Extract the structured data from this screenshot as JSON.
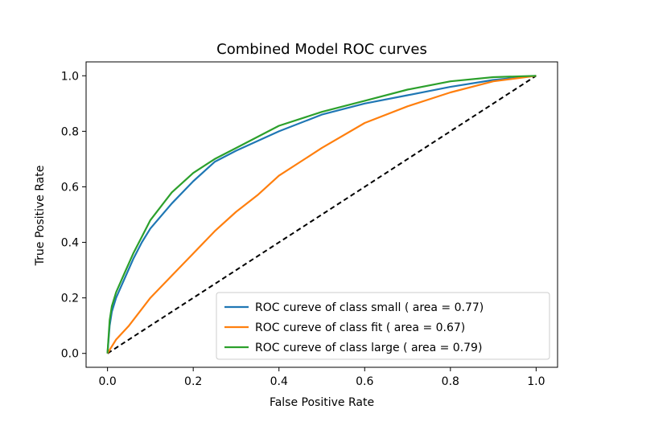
{
  "chart_data": {
    "type": "line",
    "title": "Combined Model ROC curves",
    "xlabel": "False Positive Rate",
    "ylabel": "True Positive Rate",
    "xlim": [
      -0.05,
      1.05
    ],
    "ylim": [
      -0.05,
      1.05
    ],
    "xticks": [
      0.0,
      0.2,
      0.4,
      0.6,
      0.8,
      1.0
    ],
    "yticks": [
      0.0,
      0.2,
      0.4,
      0.6,
      0.8,
      1.0
    ],
    "xtick_labels": [
      "0.0",
      "0.2",
      "0.4",
      "0.6",
      "0.8",
      "1.0"
    ],
    "ytick_labels": [
      "0.0",
      "0.2",
      "0.4",
      "0.6",
      "0.8",
      "1.0"
    ],
    "grid": false,
    "legend_position": "lower-right",
    "series": [
      {
        "name": "ROC cureve of class small ( area = 0.77)",
        "color": "#1f77b4",
        "x": [
          0.0,
          0.005,
          0.01,
          0.02,
          0.04,
          0.06,
          0.08,
          0.1,
          0.15,
          0.2,
          0.25,
          0.3,
          0.4,
          0.5,
          0.6,
          0.7,
          0.8,
          0.9,
          1.0
        ],
        "y": [
          0.0,
          0.1,
          0.15,
          0.2,
          0.27,
          0.34,
          0.4,
          0.45,
          0.54,
          0.62,
          0.69,
          0.73,
          0.8,
          0.86,
          0.9,
          0.93,
          0.96,
          0.985,
          1.0
        ]
      },
      {
        "name": "ROC cureve of class fit ( area = 0.67)",
        "color": "#ff7f0e",
        "x": [
          0.0,
          0.02,
          0.05,
          0.1,
          0.15,
          0.2,
          0.25,
          0.3,
          0.35,
          0.4,
          0.5,
          0.6,
          0.7,
          0.8,
          0.9,
          1.0
        ],
        "y": [
          0.0,
          0.05,
          0.1,
          0.2,
          0.28,
          0.36,
          0.44,
          0.51,
          0.57,
          0.64,
          0.74,
          0.83,
          0.89,
          0.94,
          0.98,
          1.0
        ]
      },
      {
        "name": "ROC cureve of class large ( area = 0.79)",
        "color": "#2ca02c",
        "x": [
          0.0,
          0.005,
          0.01,
          0.02,
          0.04,
          0.06,
          0.08,
          0.1,
          0.15,
          0.2,
          0.25,
          0.3,
          0.4,
          0.5,
          0.6,
          0.7,
          0.8,
          0.9,
          1.0
        ],
        "y": [
          0.0,
          0.12,
          0.17,
          0.22,
          0.29,
          0.36,
          0.42,
          0.48,
          0.58,
          0.65,
          0.7,
          0.74,
          0.82,
          0.87,
          0.91,
          0.95,
          0.98,
          0.995,
          1.0
        ]
      }
    ],
    "reference_line": {
      "x": [
        0.0,
        1.0
      ],
      "y": [
        0.0,
        1.0
      ],
      "color": "#000000",
      "style": "dashed"
    }
  }
}
